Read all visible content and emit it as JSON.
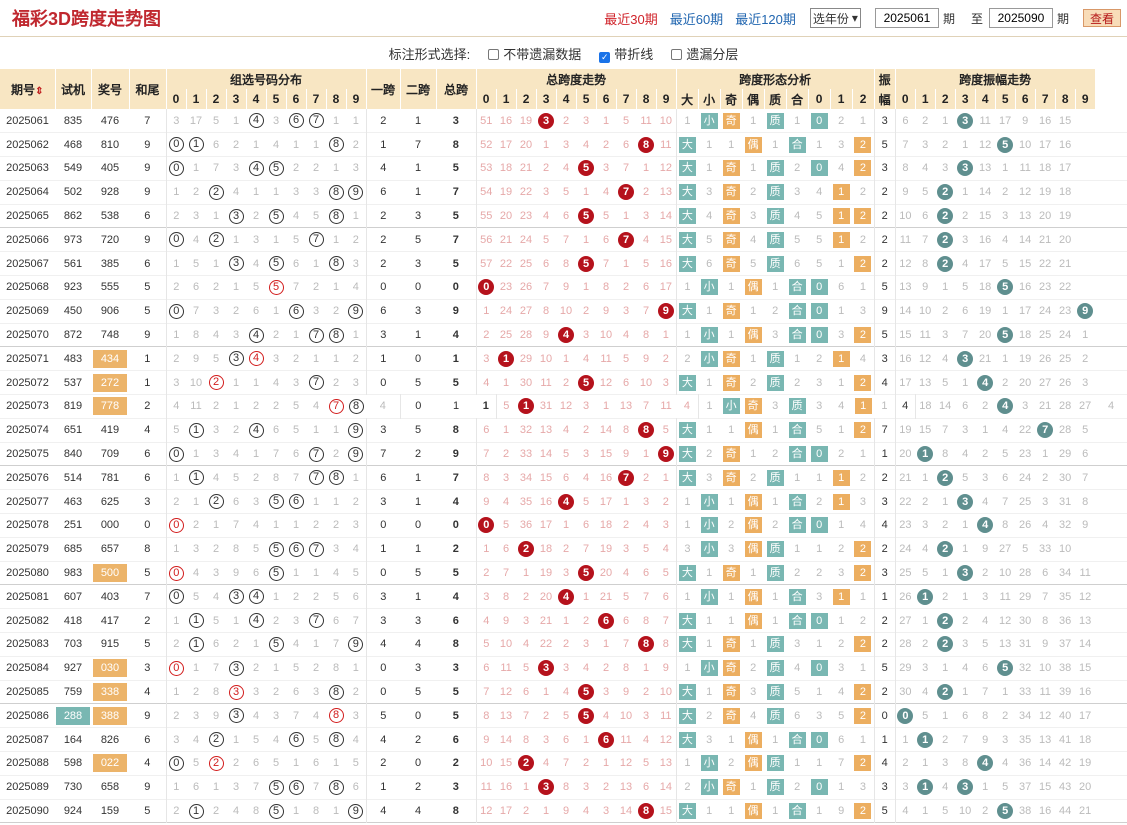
{
  "title": "福彩3D跨度走势图",
  "ranges": [
    "最近30期",
    "最近60期",
    "最近120期"
  ],
  "active_range": 0,
  "year_select": "选年份",
  "from_value": "2025061",
  "from_label": "期",
  "to_prefix": "至",
  "to_value": "2025090",
  "to_label": "期",
  "query_btn": "查看",
  "mode_label": "标注形式选择:",
  "mode_opts": [
    {
      "label": "不带遗漏数据",
      "checked": false
    },
    {
      "label": "带折线",
      "checked": true
    },
    {
      "label": "遗漏分层",
      "checked": false
    }
  ],
  "groups": {
    "issue": "期号",
    "sj": "试机",
    "kj": "奖号",
    "hw": "和尾",
    "zx": "组选号码分布",
    "k1": "一跨",
    "k2": "二跨",
    "zk": "总跨",
    "kdzs": "总跨度走势",
    "xt": "跨度形态分析",
    "zf1": "振",
    "zf2": "幅",
    "zfzs": "跨度振幅走势"
  },
  "digits": [
    "0",
    "1",
    "2",
    "3",
    "4",
    "5",
    "6",
    "7",
    "8",
    "9"
  ],
  "xt_sub": [
    "大",
    "小",
    "奇",
    "偶",
    "质",
    "合",
    "0",
    "1",
    "2"
  ],
  "colors": {
    "header": "#f8e6c3",
    "red_ball": "#b5121c",
    "grey_ball": "#5f8f8f",
    "teal_box": "#79b7b2",
    "orange_box": "#ecae60",
    "title": "#c0282f"
  },
  "rows": [
    [
      "2025061",
      "835",
      "476",
      "7",
      "3 17 5 1 (4) 3 (6) (7) 1 1",
      "2",
      "1",
      "3",
      "51 16 19 *3 2 3 1 5 11 10",
      "1 =小 =奇 1 =质 1 =0 2 1",
      "3",
      "6 2 1 *3 11 17 9 16 15 ="
    ],
    [
      "2025062",
      "468",
      "810",
      "9",
      "(0) (1) 6 2 1 4 1 1 (8) 2",
      "1",
      "7",
      "8",
      "52 17 20 1 3 4 2 6 *8 11",
      "=大 1 1 =偶 1 =合 1 3 =2",
      "5",
      "7 3 2 1 12 *5 10 17 16 ="
    ],
    [
      "2025063",
      "549",
      "405",
      "9",
      "(0) 1 7 3 (4) (5) 2 2 1 3",
      "4",
      "1",
      "5",
      "53 18 21 2 4 *5 3 7 1 12",
      "=大 1 =奇 1 =质 2 =0 4 =2",
      "3",
      "8 4 3 *3 13 1 11 18 17 ="
    ],
    [
      "2025064",
      "502",
      "928",
      "9",
      "1 2 (2) 4 1 1 3 3 (8) (9)",
      "6",
      "1",
      "7",
      "54 19 22 3 5 1 4 *7 2 13",
      "=大 3 =奇 2 =质 3 4 =1 2",
      "2",
      "9 5 *2 1 14 2 12 19 18 ="
    ],
    [
      "2025065",
      "862",
      "538",
      "6",
      "2 3 1 (3) 2 (5) 4 5 (8) 1",
      "2",
      "3",
      "5",
      "55 20 23 4 6 *5 5 1 3 14",
      "=大 4 =奇 3 =质 4 5 =1 =2",
      "2",
      "10 6 *2 2 15 3 13 20 19 ="
    ],
    [
      "2025066",
      "973",
      "720",
      "9",
      "(0) 4 (2) 1 3 1 5 (7) 1 2",
      "2",
      "5",
      "7",
      "56 21 24 5 7 1 6 *7 4 15",
      "=大 5 =奇 4 =质 5 5 =1 2",
      "2",
      "11 7 *2 3 16 4 14 21 20 ="
    ],
    [
      "2025067",
      "561",
      "385",
      "6",
      "1 5 1 (3) 4 (5) 6 1 (8) 3",
      "2",
      "3",
      "5",
      "57 22 25 6 8 *5 7 1 5 16",
      "=大 6 =奇 5 =质 6 5 1 =2",
      "2",
      "12 8 *2 4 17 5 15 22 21 ="
    ],
    [
      "2025068",
      "923",
      "555",
      "5",
      "2 6 2 1 5 ((5)) 7 2 1 4",
      "0",
      "0",
      "0",
      "*0 23 26 7 9 1 8 2 6 17",
      "1 =小 1 =偶 1 =合 =0 6 1",
      "5",
      "13 9 1 5 18 *5 16 23 22 ="
    ],
    [
      "2025069",
      "450",
      "906",
      "5",
      "(0) 7 3 2 6 1 (6) 3 2 (9)",
      "6",
      "3",
      "9",
      "1 24 27 8 10 2 9 3 7 *9",
      "=大 1 =奇 1 2 =合 =0 1 3",
      "9",
      "14 10 2 6 19 1 17 24 23 *9"
    ],
    [
      "2025070",
      "872",
      "748",
      "9",
      "1 8 4 3 (4) 2 1 (7) (8) 1",
      "3",
      "1",
      "4",
      "2 25 28 9 *4 3 10 4 8 1",
      "1 =小 1 =偶 3 =合 =0 3 =2",
      "5",
      "15 11 3 7 20 *5 18 25 24 1"
    ],
    [
      "2025071",
      "483",
      "#434",
      "1",
      "2 9 5 (3) ((4)) 3 2 1 1 2",
      "1",
      "0",
      "1",
      "3 *1 29 10 1 4 11 5 9 2",
      "2 =小 =奇 1 =质 1 2 =1 4",
      "3",
      "16 12 4 *3 21 1 19 26 25 2"
    ],
    [
      "2025072",
      "537",
      "#272",
      "1",
      "3 10 ((2)) 1 1 4 3 (7) 2 3",
      "0",
      "5",
      "5",
      "4 1 30 11 2 *5 12 6 10 3",
      "=大 1 =奇 2 =质 2 3 1 =2",
      "4",
      "17 13 5 1 *4 2 20 27 26 3"
    ],
    [
      "2025073",
      "819",
      "#778",
      "2",
      "4 11 2 1 2 2 5 4 ((7)) (8) 4",
      "0",
      "1",
      "1",
      "5 *1 31 12 3 1 13 7 11 4",
      "1 =小 =奇 3 =质 3 4 =1 1",
      "4",
      "18 14 6 2 *4 3 21 28 27 4"
    ],
    [
      "2025074",
      "651",
      "419",
      "4",
      "5 (1) 3 2 (4) 6 5 1 1 (9)",
      "3",
      "5",
      "8",
      "6 1 32 13 4 2 14 8 *8 5",
      "=大 1 1 =偶 1 =合 5 1 =2",
      "7",
      "19 15 7 3 1 4 22 *7 28 5"
    ],
    [
      "2025075",
      "840",
      "709",
      "6",
      "(0) 1 3 4 1 7 6 (7) 2 (9)",
      "7",
      "2",
      "9",
      "7 2 33 14 5 3 15 9 1 *9",
      "=大 2 =奇 1 2 =合 =0 2 1",
      "1",
      "20 *1 8 4 2 5 23 1 29 6"
    ],
    [
      "2025076",
      "514",
      "781",
      "6",
      "1 (1) 4 5 2 8 7 (7) (8) 1",
      "6",
      "1",
      "7",
      "8 3 34 15 6 4 16 *7 2 1",
      "=大 3 =奇 2 =质 1 1 =1 2",
      "2",
      "21 1 *2 5 3 6 24 2 30 7"
    ],
    [
      "2025077",
      "463",
      "625",
      "3",
      "2 1 (2) 6 3 (5) (6) 1 1 2",
      "3",
      "1",
      "4",
      "9 4 35 16 *4 5 17 1 3 2",
      "1 =小 1 =偶 1 =合 2 =1 3",
      "3",
      "22 2 1 *3 4 7 25 3 31 8"
    ],
    [
      "2025078",
      "251",
      "000",
      "0",
      "((0)) 2 1 7 4 1 1 2 2 3",
      "0",
      "0",
      "0",
      "*0 5 36 17 1 6 18 2 4 3",
      "1 =小 2 =偶 2 =合 =0 1 4",
      "4",
      "23 3 2 1 *4 8 26 4 32 9"
    ],
    [
      "2025079",
      "685",
      "657",
      "8",
      "1 3 2 8 5 (5) (6) (7) 3 4",
      "1",
      "1",
      "2",
      "1 6 *2 18 2 7 19 3 5 4",
      "3 =小 3 =偶 =质 1 1 2 =2",
      "2",
      "24 4 *2 1 9 27 5 33 10 ="
    ],
    [
      "2025080",
      "983",
      "#500",
      "5",
      "((0)) 4 3 9 6 (5) 1 1 4 5",
      "0",
      "5",
      "5",
      "2 7 1 19 3 *5 20 4 6 5",
      "=大 1 =奇 1 =质 2 2 3 =2",
      "3",
      "25 5 1 *3 2 10 28 6 34 11"
    ],
    [
      "2025081",
      "607",
      "403",
      "7",
      "(0) 5 4 (3) (4) 1 2 2 5 6",
      "3",
      "1",
      "4",
      "3 8 2 20 *4 1 21 5 7 6",
      "1 =小 1 =偶 1 =合 3 =1 1",
      "1",
      "26 *1 2 1 3 11 29 7 35 12"
    ],
    [
      "2025082",
      "418",
      "417",
      "2",
      "1 (1) 5 1 (4) 2 3 (7) 6 7",
      "3",
      "3",
      "6",
      "4 9 3 21 1 2 *6 6 8 7",
      "=大 1 1 =偶 1 =合 =0 1 2",
      "2",
      "27 1 *2 2 4 12 30 8 36 13"
    ],
    [
      "2025083",
      "703",
      "915",
      "5",
      "2 (1) 6 2 1 (5) 4 1 7 (9)",
      "4",
      "4",
      "8",
      "5 10 4 22 2 3 1 7 *8 8",
      "=大 1 =奇 1 =质 3 1 2 =2",
      "2",
      "28 2 *2 3 5 13 31 9 37 14"
    ],
    [
      "2025084",
      "927",
      "#030",
      "3",
      "((0)) 1 7 (3) 2 1 5 2 8 1",
      "0",
      "3",
      "3",
      "6 11 5 *3 3 4 2 8 1 9",
      "1 =小 =奇 2 =质 4 =0 3 1",
      "5",
      "29 3 1 4 6 *5 32 10 38 15"
    ],
    [
      "2025085",
      "759",
      "#338",
      "4",
      "1 2 8 ((3)) 3 2 6 3 (8) 2",
      "0",
      "5",
      "5",
      "7 12 6 1 4 *5 3 9 2 10",
      "=大 1 =奇 3 =质 5 1 4 =2",
      "2",
      "30 4 *2 1 7 1 33 11 39 16"
    ],
    [
      "2025086",
      "%288",
      "#388",
      "9",
      "2 3 9 (3) 4 3 7 4 ((8)) 3",
      "5",
      "0",
      "5",
      "8 13 7 2 5 *5 4 10 3 11",
      "=大 2 =奇 4 =质 6 3 5 =2",
      "0",
      "*0 5 1 6 8 2 34 12 40 17"
    ],
    [
      "2025087",
      "164",
      "826",
      "6",
      "3 4 (2) 1 5 4 (6) 5 (8) 4",
      "4",
      "2",
      "6",
      "9 14 8 3 6 1 *6 11 4 12",
      "=大 3 1 =偶 1 =合 =0 6 1",
      "1",
      "1 *1 2 7 9 3 35 13 41 18"
    ],
    [
      "2025088",
      "598",
      "#022",
      "4",
      "(0) 5 ((2)) 2 6 5 1 6 1 5",
      "2",
      "0",
      "2",
      "10 15 *2 4 7 2 1 12 5 13",
      "1 =小 2 =偶 =质 1 1 7 =2",
      "4",
      "2 1 3 8 *4 4 36 14 42 19"
    ],
    [
      "2025089",
      "730",
      "658",
      "9",
      "1 6 1 3 7 (5) (6) 7 (8) 6",
      "1",
      "2",
      "3",
      "11 16 1 *3 8 3 2 13 6 14",
      "2 =小 =奇 1 =质 2 =0 1 3",
      "3",
      "3 *1 4 *3 1 5 37 15 43 20"
    ],
    [
      "2025090",
      "924",
      "159",
      "5",
      "2 (1) 2 4 8 (5) 1 8 1 (9)",
      "4",
      "4",
      "8",
      "12 17 2 1 9 4 3 14 *8 15",
      "=大 1 1 =偶 1 =合 1 9 =2",
      "5",
      "4 1 5 10 2 *5 38 16 44 21"
    ]
  ]
}
